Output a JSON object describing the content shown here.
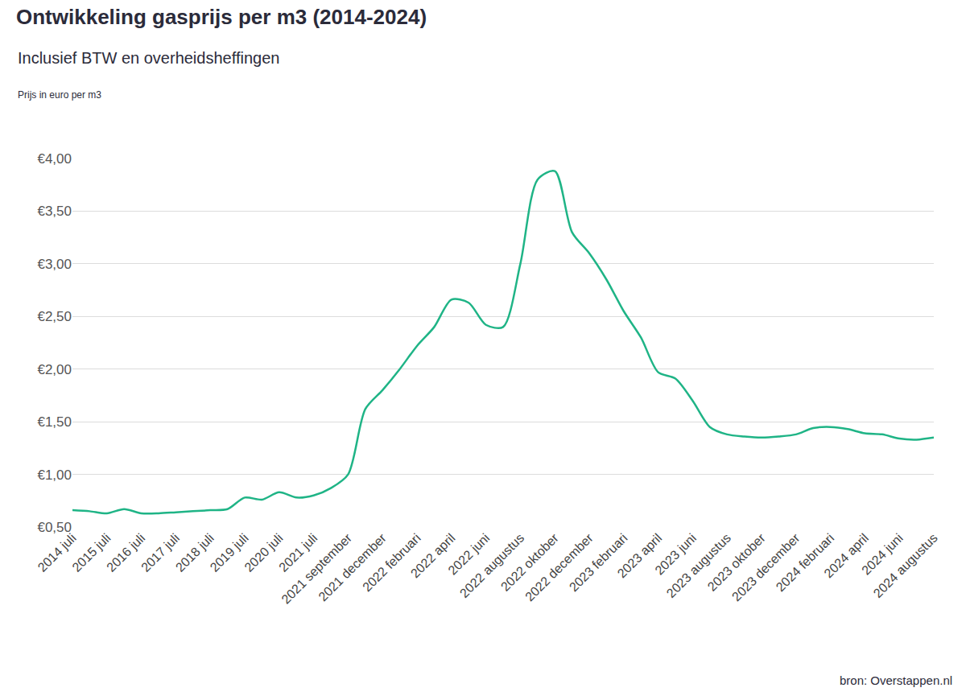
{
  "chart_data": {
    "type": "line",
    "title": "Ontwikkeling gasprijs per m3 (2014-2024)",
    "subtitle": "Inclusief BTW en overheidsheffingen",
    "y_label": "Prijs in euro per m3",
    "source": "bron: Overstappen.nl",
    "categories": [
      "2014 juli",
      null,
      "2015 juli",
      null,
      "2016 juli",
      null,
      "2017 juli",
      null,
      "2018 juli",
      null,
      "2019 juli",
      null,
      "2020 juli",
      null,
      "2021 juli",
      null,
      "2021 september",
      null,
      "2021 december",
      null,
      "2022 februari",
      null,
      "2022 april",
      null,
      "2022 juni",
      null,
      "2022 augustus",
      null,
      "2022 oktober",
      null,
      "2022 december",
      null,
      "2023 februari",
      null,
      "2023 april",
      null,
      "2023 juni",
      null,
      "2023 augustus",
      null,
      "2023 oktober",
      null,
      "2023 december",
      null,
      "2024 februari",
      null,
      "2024 april",
      null,
      "2024 juni",
      null,
      "2024 augustus"
    ],
    "values": [
      0.66,
      0.65,
      0.63,
      0.67,
      0.63,
      0.63,
      0.64,
      0.65,
      0.66,
      0.67,
      0.78,
      0.76,
      0.83,
      0.78,
      0.8,
      0.87,
      1.0,
      1.62,
      1.8,
      2.0,
      2.22,
      2.4,
      2.66,
      2.63,
      2.42,
      2.4,
      3.0,
      3.8,
      3.88,
      3.3,
      3.1,
      2.85,
      2.55,
      2.3,
      1.97,
      1.91,
      1.7,
      1.45,
      1.38,
      1.36,
      1.35,
      1.36,
      1.38,
      1.44,
      1.45,
      1.43,
      1.39,
      1.38,
      1.34,
      1.33,
      1.35
    ],
    "color": "#1fb486",
    "line_style": "solid",
    "ylim": [
      0.5,
      4.0
    ],
    "yticks": [
      {
        "value": 0.5,
        "label": "€0,50"
      },
      {
        "value": 1.0,
        "label": "€1,00"
      },
      {
        "value": 1.5,
        "label": "€1,50"
      },
      {
        "value": 2.0,
        "label": "€2,00"
      },
      {
        "value": 2.5,
        "label": "€2,50"
      },
      {
        "value": 3.0,
        "label": "€3,00"
      },
      {
        "value": 3.5,
        "label": "€3,50"
      },
      {
        "value": 4.0,
        "label": "€4,00"
      }
    ],
    "grid": true
  }
}
